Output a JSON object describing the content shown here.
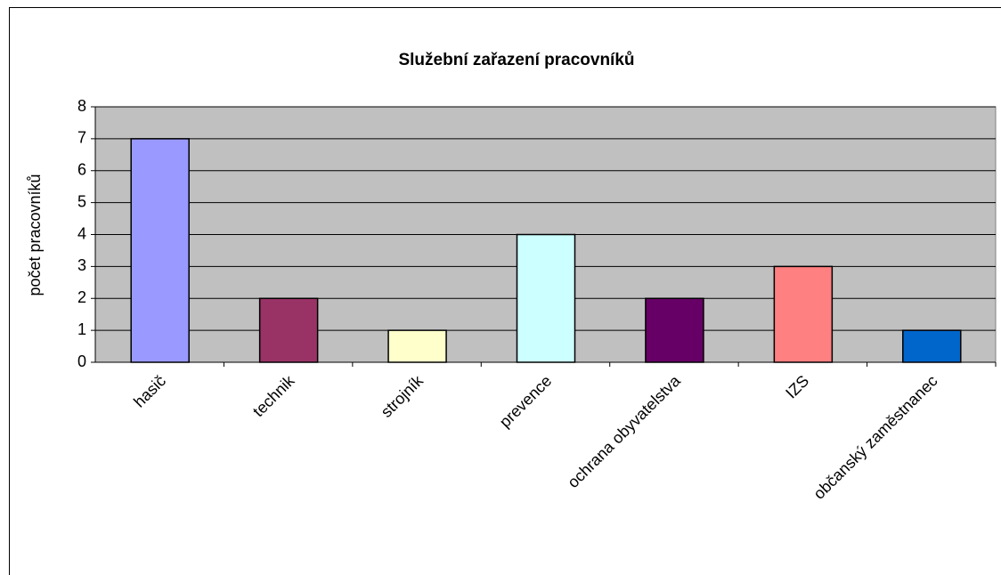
{
  "chart_data": {
    "type": "bar",
    "title": "Služební zařazení pracovníků",
    "y_label": "počet pracovníků",
    "categories": [
      "hasič",
      "technik",
      "strojník",
      "prevence",
      "ochrana obyvatelstva",
      "IZS",
      "občanský zaměstnanec"
    ],
    "values": [
      7,
      2,
      1,
      4,
      2,
      3,
      1
    ],
    "colors": [
      "#9999ff",
      "#993366",
      "#ffffcc",
      "#ccffff",
      "#660066",
      "#ff8080",
      "#0066cc"
    ],
    "ylim": [
      0,
      8
    ],
    "yticks": [
      0,
      1,
      2,
      3,
      4,
      5,
      6,
      7,
      8
    ],
    "grid": true
  }
}
